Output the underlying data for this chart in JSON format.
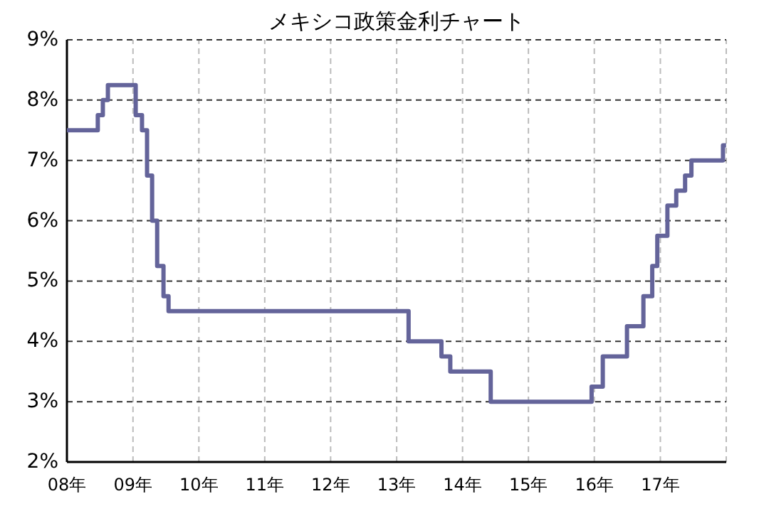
{
  "chart_data": {
    "type": "step",
    "title": "メキシコ政策金利チャート",
    "grid": true,
    "xlim": [
      "2008-01-01",
      "2018-01-01"
    ],
    "xticks": [
      {
        "value": "2008",
        "label": "08年"
      },
      {
        "value": "2009",
        "label": "09年"
      },
      {
        "value": "2010",
        "label": "10年"
      },
      {
        "value": "2011",
        "label": "11年"
      },
      {
        "value": "2012",
        "label": "12年"
      },
      {
        "value": "2013",
        "label": "13年"
      },
      {
        "value": "2014",
        "label": "14年"
      },
      {
        "value": "2015",
        "label": "15年"
      },
      {
        "value": "2016",
        "label": "16年"
      },
      {
        "value": "2017",
        "label": "17年"
      }
    ],
    "ylim": [
      2,
      9
    ],
    "yticks": [
      {
        "value": 2,
        "label": "2%"
      },
      {
        "value": 3,
        "label": "3%"
      },
      {
        "value": 4,
        "label": "4%"
      },
      {
        "value": 5,
        "label": "5%"
      },
      {
        "value": 6,
        "label": "6%"
      },
      {
        "value": 7,
        "label": "7%"
      },
      {
        "value": 8,
        "label": "8%"
      },
      {
        "value": 9,
        "label": "9%"
      }
    ],
    "series": [
      {
        "color": "#64649a",
        "x": [
          "2008-01-01",
          "2008-06-20",
          "2008-07-18",
          "2008-08-15",
          "2009-01-16",
          "2009-02-20",
          "2009-03-20",
          "2009-04-17",
          "2009-05-15",
          "2009-06-19",
          "2009-07-17",
          "2013-03-08",
          "2013-09-06",
          "2013-10-25",
          "2014-06-06",
          "2015-12-17",
          "2016-02-17",
          "2016-06-30",
          "2016-09-29",
          "2016-11-17",
          "2016-12-15",
          "2017-02-09",
          "2017-03-30",
          "2017-05-18",
          "2017-06-22",
          "2017-12-14",
          "2017-12-31"
        ],
        "values": [
          7.5,
          7.75,
          8.0,
          8.25,
          7.75,
          7.5,
          6.75,
          6.0,
          5.25,
          4.75,
          4.5,
          4.0,
          3.75,
          3.5,
          3.0,
          3.25,
          3.75,
          4.25,
          4.75,
          5.25,
          5.75,
          6.25,
          6.5,
          6.75,
          7.0,
          7.25,
          7.25
        ]
      }
    ]
  }
}
